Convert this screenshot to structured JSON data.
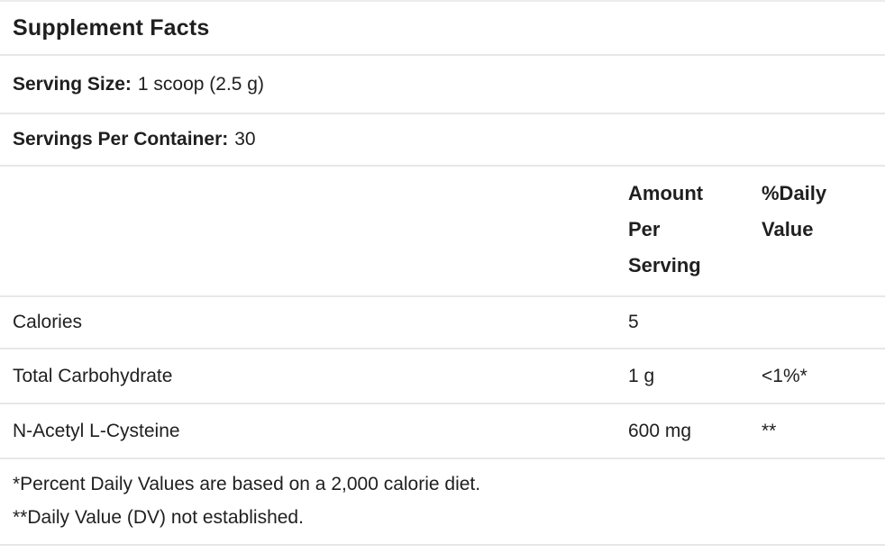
{
  "label": {
    "title": "Supplement Facts",
    "serving_size": {
      "label": "Serving Size:",
      "value": "1 scoop (2.5 g)"
    },
    "servings_per_container": {
      "label": "Servings Per Container:",
      "value": "30"
    },
    "columns": {
      "amount_header": "Amount Per Serving",
      "daily_value_header": "%Daily Value"
    },
    "rows": [
      {
        "name": "Calories",
        "amount": "5",
        "daily_value": ""
      },
      {
        "name": "Total Carbohydrate",
        "amount": "1 g",
        "daily_value": "<1%*"
      },
      {
        "name": "N-Acetyl L-Cysteine",
        "amount": "600 mg",
        "daily_value": "**"
      }
    ],
    "footnotes": [
      "*Percent Daily Values are based on a 2,000 calorie diet.",
      "**Daily Value (DV) not established."
    ],
    "colors": {
      "text": "#1f1f1f",
      "divider": "#e7e7e7",
      "background": "#ffffff"
    }
  }
}
